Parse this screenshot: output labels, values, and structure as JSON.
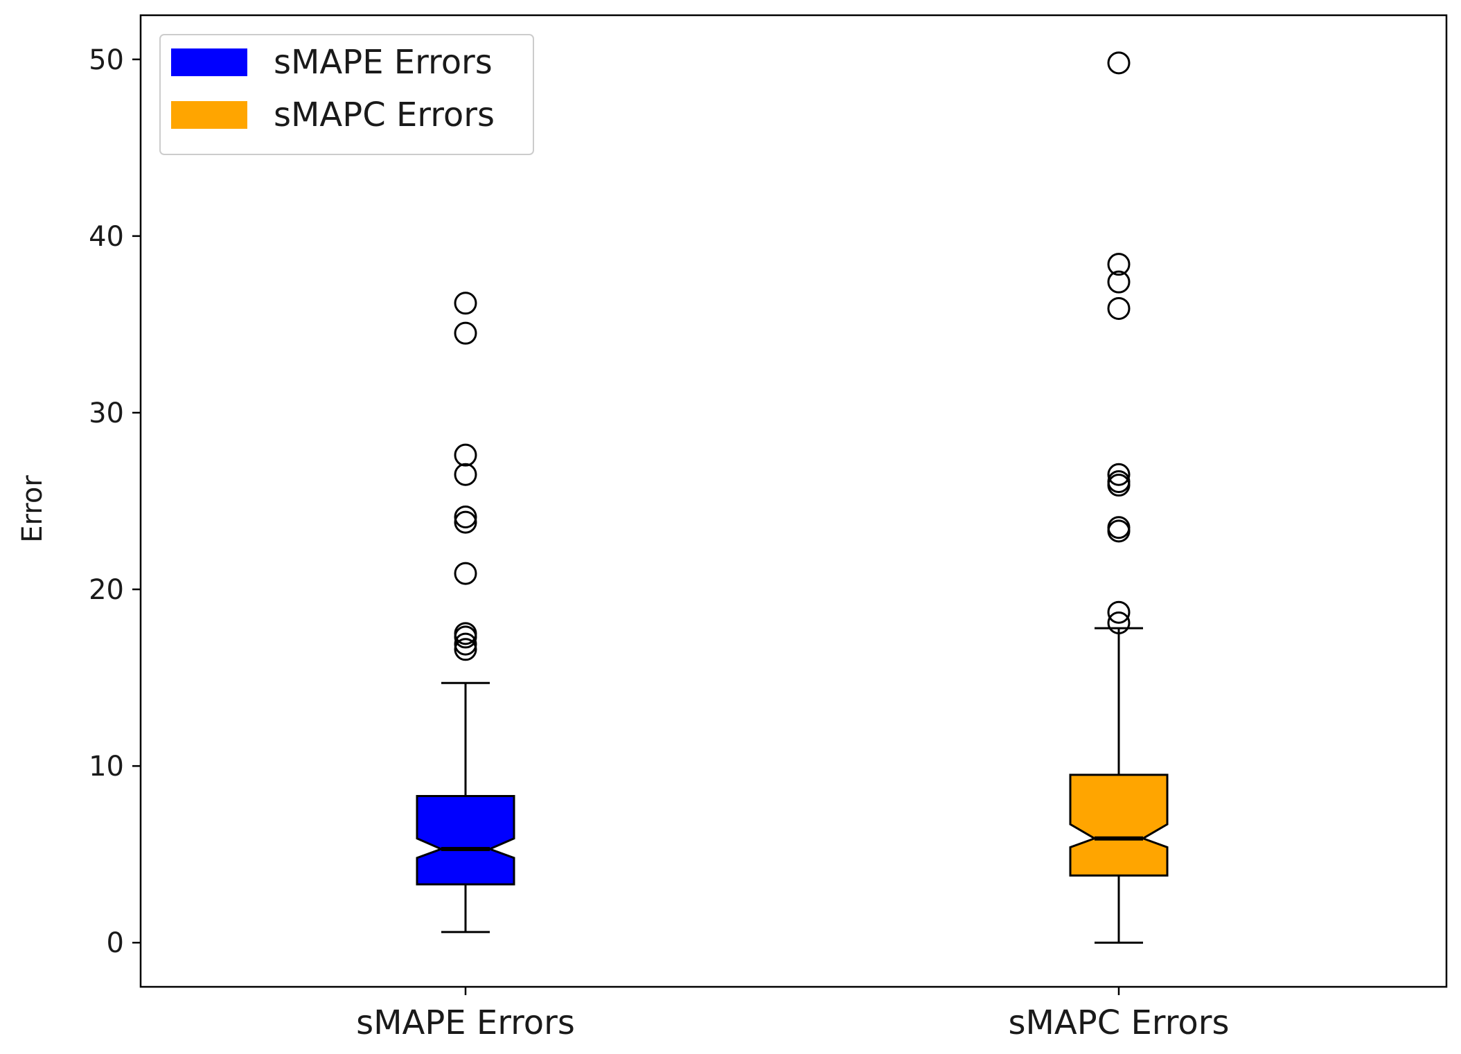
{
  "chart_data": {
    "type": "boxplot",
    "ylabel": "Error",
    "xlabel": "",
    "ylim": [
      -2.5,
      52.5
    ],
    "yticks": [
      0,
      10,
      20,
      30,
      40,
      50
    ],
    "ytick_labels": [
      "0",
      "10",
      "20",
      "30",
      "40",
      "50"
    ],
    "categories": [
      "sMAPE Errors",
      "sMAPC Errors"
    ],
    "notched": true,
    "grid": false,
    "legend": {
      "placement": "upper-left",
      "entries": [
        {
          "label": "sMAPE Errors",
          "color": "#0000ff"
        },
        {
          "label": "sMAPC Errors",
          "color": "#ffa500"
        }
      ]
    },
    "series": [
      {
        "color": "#0000ff",
        "whisker_low": 0.6,
        "q1": 3.3,
        "median": 5.3,
        "q3": 8.3,
        "notch_low": 4.8,
        "notch_high": 5.9,
        "whisker_high": 14.7,
        "outliers": [
          16.6,
          16.9,
          17.3,
          17.5,
          20.9,
          23.8,
          24.1,
          26.5,
          27.6,
          34.5,
          36.2
        ]
      },
      {
        "color": "#ffa500",
        "whisker_low": 0.0,
        "q1": 3.8,
        "median": 5.9,
        "q3": 9.5,
        "notch_low": 5.4,
        "notch_high": 6.7,
        "whisker_high": 17.8,
        "outliers": [
          18.1,
          18.7,
          23.3,
          23.5,
          25.9,
          26.1,
          26.5,
          35.9,
          37.4,
          38.4,
          49.8
        ]
      }
    ]
  }
}
